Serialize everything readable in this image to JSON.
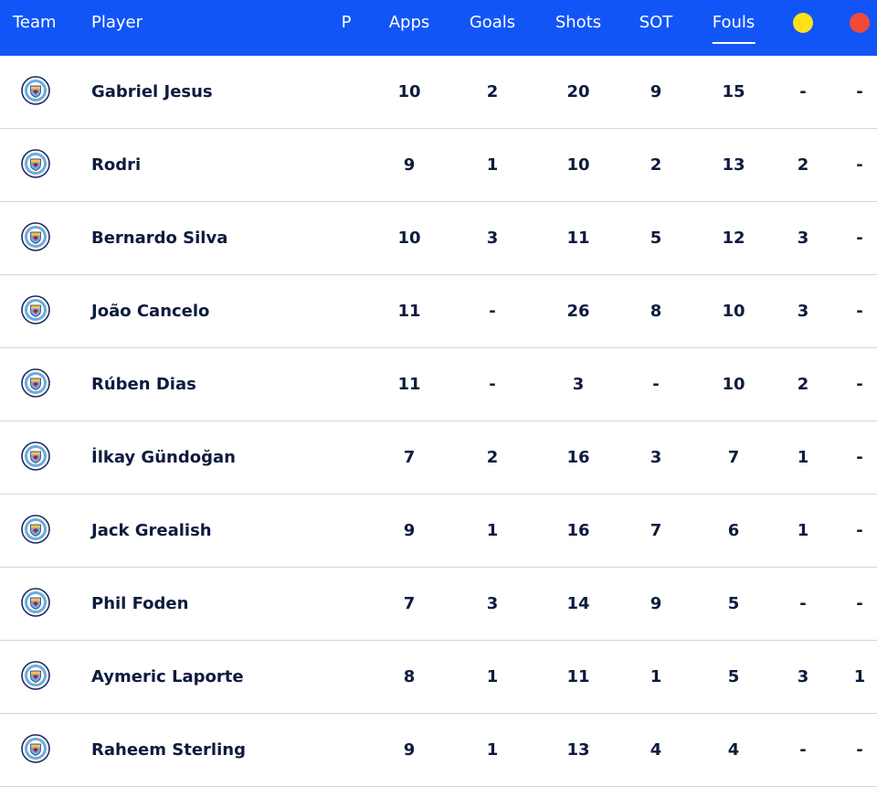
{
  "header": {
    "team": "Team",
    "player": "Player",
    "p": "P",
    "apps": "Apps",
    "goals": "Goals",
    "shots": "Shots",
    "sot": "SOT",
    "fouls": "Fouls",
    "yellow_icon": "yellow-card-icon",
    "red_icon": "red-card-icon",
    "active_sort": "Fouls"
  },
  "colors": {
    "header_bg": "#1255f7",
    "yellow": "#ffe11a",
    "red": "#f04a3a",
    "crest_blue": "#6cabdd"
  },
  "rows": [
    {
      "player": "Gabriel Jesus",
      "apps": "10",
      "goals": "2",
      "shots": "20",
      "sot": "9",
      "fouls": "15",
      "yellow": "-",
      "red": "-"
    },
    {
      "player": "Rodri",
      "apps": "9",
      "goals": "1",
      "shots": "10",
      "sot": "2",
      "fouls": "13",
      "yellow": "2",
      "red": "-"
    },
    {
      "player": "Bernardo Silva",
      "apps": "10",
      "goals": "3",
      "shots": "11",
      "sot": "5",
      "fouls": "12",
      "yellow": "3",
      "red": "-"
    },
    {
      "player": "João Cancelo",
      "apps": "11",
      "goals": "-",
      "shots": "26",
      "sot": "8",
      "fouls": "10",
      "yellow": "3",
      "red": "-"
    },
    {
      "player": "Rúben Dias",
      "apps": "11",
      "goals": "-",
      "shots": "3",
      "sot": "-",
      "fouls": "10",
      "yellow": "2",
      "red": "-"
    },
    {
      "player": "İlkay Gündoğan",
      "apps": "7",
      "goals": "2",
      "shots": "16",
      "sot": "3",
      "fouls": "7",
      "yellow": "1",
      "red": "-"
    },
    {
      "player": "Jack Grealish",
      "apps": "9",
      "goals": "1",
      "shots": "16",
      "sot": "7",
      "fouls": "6",
      "yellow": "1",
      "red": "-"
    },
    {
      "player": "Phil Foden",
      "apps": "7",
      "goals": "3",
      "shots": "14",
      "sot": "9",
      "fouls": "5",
      "yellow": "-",
      "red": "-"
    },
    {
      "player": "Aymeric Laporte",
      "apps": "8",
      "goals": "1",
      "shots": "11",
      "sot": "1",
      "fouls": "5",
      "yellow": "3",
      "red": "1"
    },
    {
      "player": "Raheem Sterling",
      "apps": "9",
      "goals": "1",
      "shots": "13",
      "sot": "4",
      "fouls": "4",
      "yellow": "-",
      "red": "-"
    }
  ]
}
